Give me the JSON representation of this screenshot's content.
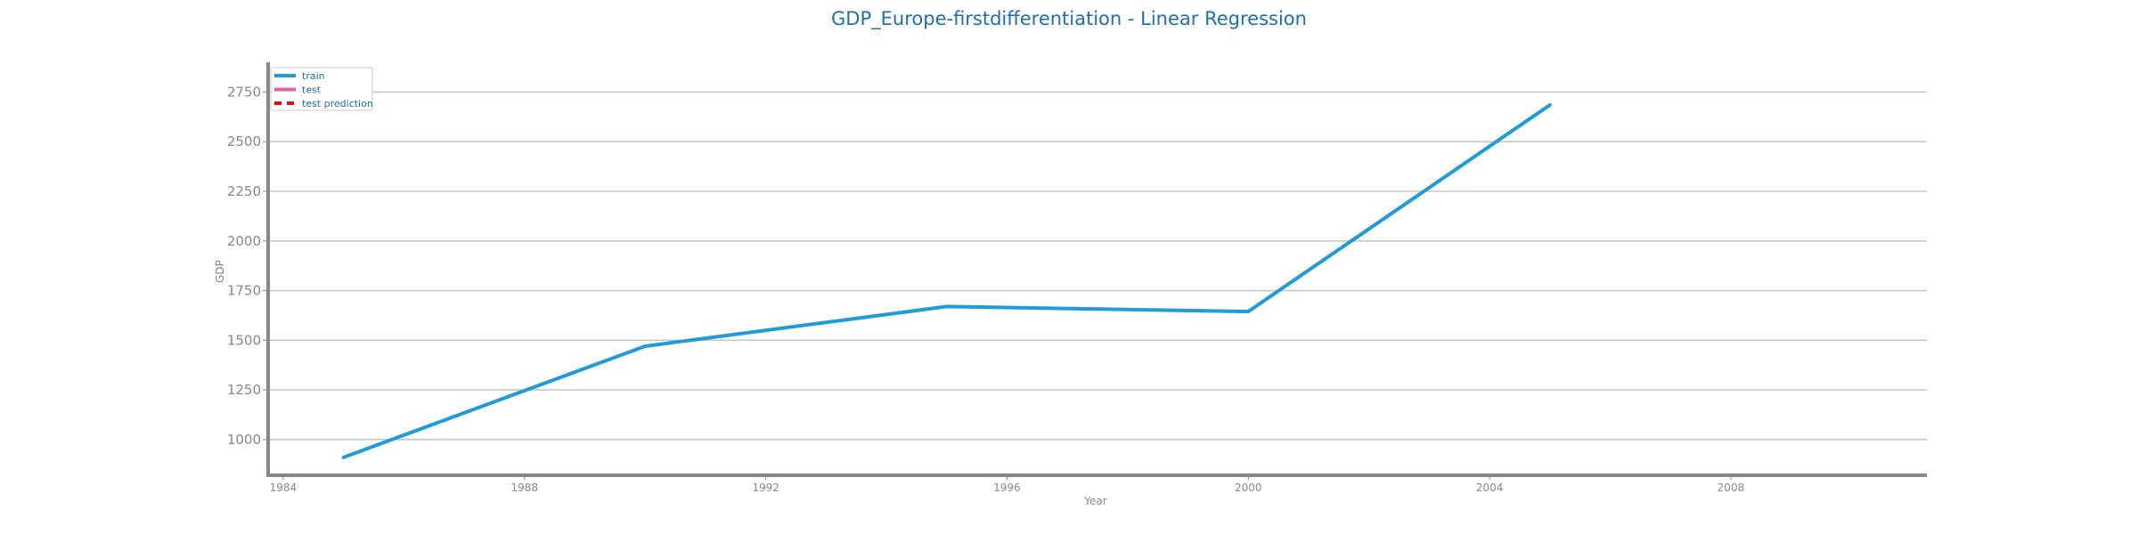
{
  "colors": {
    "title": "#1f6fb0",
    "train": "#1f9bd6",
    "test": "#d964a5",
    "test_prediction": "#e01010",
    "grid": "#c8c8c8",
    "axis": "#888888",
    "legend_text": "#1f6fb0"
  },
  "chart_data": {
    "type": "line",
    "title": "GDP_Europe-firstdifferentiation - Linear Regression",
    "xlabel": "Year",
    "ylabel": "GDP",
    "xlim": [
      1983.75,
      2011.25
    ],
    "ylim": [
      820,
      2900
    ],
    "xticks": [
      1984,
      1988,
      1992,
      1996,
      2000,
      2004,
      2008
    ],
    "yticks": [
      1000,
      1250,
      1500,
      1750,
      2000,
      2250,
      2500,
      2750
    ],
    "grid": "horizontal",
    "legend_position": "top-left",
    "series": [
      {
        "name": "train",
        "style": "solid",
        "x": [
          1985,
          1990,
          1995,
          2000,
          2005
        ],
        "y": [
          910,
          1470,
          1670,
          1645,
          2685
        ]
      },
      {
        "name": "test",
        "style": "solid",
        "x": [],
        "y": []
      },
      {
        "name": "test prediction",
        "style": "dashed",
        "x": [],
        "y": []
      }
    ]
  }
}
